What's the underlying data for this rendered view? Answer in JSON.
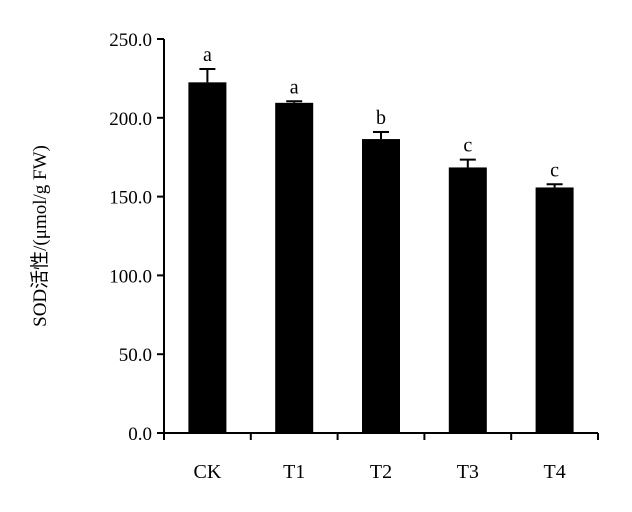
{
  "chart_data": {
    "type": "bar",
    "title": "",
    "xlabel": "",
    "ylabel": "SOD活性/(μmol/g FW)",
    "categories": [
      "CK",
      "T1",
      "T2",
      "T3",
      "T4"
    ],
    "values": [
      222.5,
      209.5,
      186.5,
      168.5,
      155.8
    ],
    "error": [
      8.5,
      1.0,
      4.5,
      5.0,
      2.0
    ],
    "significance": [
      "a",
      "a",
      "b",
      "c",
      "c"
    ],
    "ylim": [
      0,
      250
    ],
    "yticks": [
      "0.0",
      "50.0",
      "100.0",
      "150.0",
      "200.0",
      "250.0"
    ],
    "grid": false,
    "legend": "none",
    "colors": {
      "bar": "#000000",
      "axis": "#000000"
    }
  }
}
